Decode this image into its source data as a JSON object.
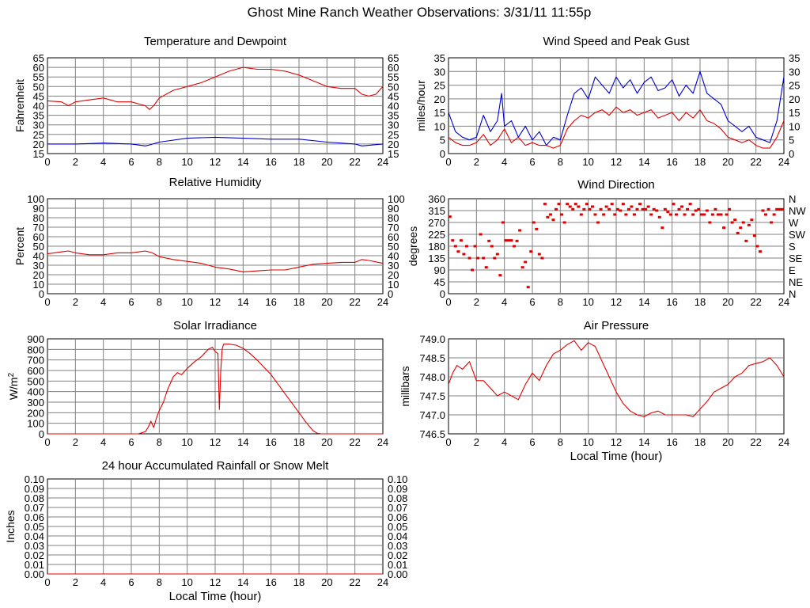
{
  "page": {
    "title": "Ghost Mine Ranch Weather Observations: 3/31/11 11:55p",
    "x_axis_label": "Local Time (hour)"
  },
  "colors": {
    "grid": "#808080",
    "red": "#e00000",
    "blue": "#0000d0",
    "axis": "#000000"
  },
  "chart_data": [
    {
      "id": "temperature",
      "type": "line",
      "title": "Temperature and Dewpoint",
      "ylabel": "Fahrenheit",
      "xlim": [
        0,
        24
      ],
      "ylim": [
        15,
        65
      ],
      "x_ticks": [
        0,
        2,
        4,
        6,
        8,
        10,
        12,
        14,
        16,
        18,
        20,
        22,
        24
      ],
      "y_ticks": [
        "15",
        "20",
        "25",
        "30",
        "35",
        "40",
        "45",
        "50",
        "55",
        "60",
        "65"
      ],
      "right_ticks": [
        "15",
        "20",
        "25",
        "30",
        "35",
        "40",
        "45",
        "50",
        "55",
        "60",
        "65"
      ],
      "series": [
        {
          "name": "Temperature",
          "color": "red",
          "x": [
            0,
            1,
            1.5,
            2,
            3,
            4,
            5,
            6,
            6.5,
            7,
            7.3,
            7.6,
            8,
            9,
            10,
            11,
            12,
            13,
            14,
            15,
            16,
            17,
            18,
            19,
            20,
            21,
            22,
            22.5,
            23,
            23.5,
            24
          ],
          "y": [
            42.5,
            42,
            40,
            42,
            43,
            44,
            42,
            42,
            41,
            40,
            38,
            40,
            44,
            48,
            50,
            52,
            55,
            58,
            60,
            59,
            59,
            58,
            56,
            53,
            50,
            49,
            49,
            46,
            45,
            46,
            50
          ]
        },
        {
          "name": "Dewpoint",
          "color": "blue",
          "x": [
            0,
            2,
            4,
            6,
            7,
            7.3,
            8,
            10,
            12,
            14,
            16,
            18,
            20,
            22,
            22.5,
            24
          ],
          "y": [
            20,
            20,
            20.5,
            20,
            19,
            19.5,
            21,
            23,
            23.5,
            23,
            22.5,
            22.5,
            21,
            20,
            19,
            20
          ]
        }
      ]
    },
    {
      "id": "wind_speed",
      "type": "line",
      "title": "Wind Speed and Peak Gust",
      "ylabel": "miles/hour",
      "xlim": [
        0,
        24
      ],
      "ylim": [
        0,
        35
      ],
      "x_ticks": [
        0,
        2,
        4,
        6,
        8,
        10,
        12,
        14,
        16,
        18,
        20,
        22,
        24
      ],
      "y_ticks": [
        "0",
        "5",
        "10",
        "15",
        "20",
        "25",
        "30",
        "35"
      ],
      "right_ticks": [
        "0",
        "5",
        "10",
        "15",
        "20",
        "25",
        "30",
        "35"
      ],
      "series": [
        {
          "name": "Peak Gust",
          "color": "blue",
          "x": [
            0,
            0.5,
            1,
            1.5,
            2,
            2.5,
            3,
            3.5,
            3.8,
            4,
            4.5,
            5,
            5.5,
            6,
            6.5,
            7,
            7.5,
            8,
            8.5,
            9,
            9.5,
            10,
            10.5,
            11,
            11.5,
            12,
            12.5,
            13,
            13.5,
            14,
            14.5,
            15,
            15.5,
            16,
            16.5,
            17,
            17.5,
            18,
            18.5,
            19,
            19.5,
            20,
            20.5,
            21,
            21.5,
            22,
            22.5,
            23,
            23.5,
            24
          ],
          "y": [
            15,
            8,
            6,
            5,
            6,
            14,
            8,
            12,
            22,
            10,
            12,
            6,
            10,
            5,
            8,
            3,
            6,
            5,
            14,
            22,
            24,
            20,
            28,
            25,
            22,
            28,
            24,
            27,
            22,
            26,
            28,
            23,
            24,
            27,
            21,
            25,
            22,
            30,
            22,
            20,
            18,
            12,
            10,
            8,
            10,
            6,
            5,
            4,
            12,
            28
          ]
        },
        {
          "name": "Wind Speed",
          "color": "red",
          "x": [
            0,
            0.5,
            1,
            1.5,
            2,
            2.5,
            3,
            3.5,
            4,
            4.5,
            5,
            5.5,
            6,
            6.5,
            7,
            7.5,
            8,
            8.5,
            9,
            9.5,
            10,
            10.5,
            11,
            11.5,
            12,
            12.5,
            13,
            13.5,
            14,
            14.5,
            15,
            15.5,
            16,
            16.5,
            17,
            17.5,
            18,
            18.5,
            19,
            19.5,
            20,
            20.5,
            21,
            21.5,
            22,
            22.5,
            23,
            23.5,
            24
          ],
          "y": [
            6,
            4,
            3,
            3,
            4,
            7,
            3,
            5,
            9,
            4,
            6,
            3,
            4,
            3,
            3,
            2,
            3,
            9,
            12,
            14,
            13,
            15,
            16,
            14,
            17,
            15,
            16,
            14,
            15,
            16,
            13,
            14,
            15,
            12,
            15,
            13,
            16,
            12,
            11,
            9,
            6,
            5,
            4,
            5,
            3,
            2,
            2,
            6,
            12
          ]
        }
      ]
    },
    {
      "id": "humidity",
      "type": "line",
      "title": "Relative Humidity",
      "ylabel": "Percent",
      "xlim": [
        0,
        24
      ],
      "ylim": [
        0,
        100
      ],
      "x_ticks": [
        0,
        2,
        4,
        6,
        8,
        10,
        12,
        14,
        16,
        18,
        20,
        22,
        24
      ],
      "y_ticks": [
        "0",
        "10",
        "20",
        "30",
        "40",
        "50",
        "60",
        "70",
        "80",
        "90",
        "100"
      ],
      "right_ticks": [
        "0",
        "10",
        "20",
        "30",
        "40",
        "50",
        "60",
        "70",
        "80",
        "90",
        "100"
      ],
      "series": [
        {
          "name": "Relative Humidity",
          "color": "red",
          "x": [
            0,
            1,
            1.5,
            2,
            3,
            4,
            5,
            6,
            7,
            7.5,
            8,
            9,
            10,
            11,
            12,
            13,
            14,
            15,
            16,
            17,
            18,
            19,
            20,
            21,
            22,
            22.5,
            23,
            24
          ],
          "y": [
            42,
            44,
            45,
            43,
            41,
            41,
            43,
            43,
            45,
            43,
            39,
            36,
            34,
            32,
            28,
            26,
            23,
            24,
            25,
            25,
            28,
            31,
            32,
            33,
            33,
            36,
            35,
            32
          ]
        }
      ]
    },
    {
      "id": "wind_direction",
      "type": "scatter",
      "title": "Wind Direction",
      "ylabel": "degrees",
      "xlim": [
        0,
        24
      ],
      "ylim": [
        0,
        360
      ],
      "x_ticks": [
        0,
        2,
        4,
        6,
        8,
        10,
        12,
        14,
        16,
        18,
        20,
        22,
        24
      ],
      "y_ticks": [
        "0",
        "45",
        "90",
        "135",
        "180",
        "225",
        "270",
        "315",
        "360"
      ],
      "right_ticks": [
        "N",
        "NE",
        "E",
        "SE",
        "S",
        "SW",
        "W",
        "NW",
        "N"
      ],
      "series": [
        {
          "name": "Direction",
          "color": "red",
          "x": [
            0.1,
            0.3,
            0.5,
            0.7,
            0.9,
            1.1,
            1.3,
            1.5,
            1.7,
            1.9,
            2.1,
            2.3,
            2.5,
            2.7,
            2.9,
            3.1,
            3.3,
            3.5,
            3.7,
            3.9,
            4.1,
            4.3,
            4.5,
            4.7,
            4.9,
            5.1,
            5.3,
            5.5,
            5.7,
            5.9,
            6.1,
            6.3,
            6.5,
            6.7,
            6.9,
            7.1,
            7.3,
            7.5,
            7.7,
            7.9,
            8.1,
            8.3,
            8.5,
            8.7,
            8.9,
            9.1,
            9.3,
            9.5,
            9.7,
            9.9,
            10.1,
            10.3,
            10.5,
            10.7,
            10.9,
            11.1,
            11.3,
            11.5,
            11.7,
            11.9,
            12.1,
            12.3,
            12.5,
            12.7,
            12.9,
            13.1,
            13.3,
            13.5,
            13.7,
            13.9,
            14.1,
            14.3,
            14.5,
            14.7,
            14.9,
            15.1,
            15.3,
            15.5,
            15.7,
            15.9,
            16.1,
            16.3,
            16.5,
            16.7,
            16.9,
            17.1,
            17.3,
            17.5,
            17.7,
            17.9,
            18.1,
            18.3,
            18.5,
            18.7,
            18.9,
            19.1,
            19.3,
            19.5,
            19.7,
            19.9,
            20.1,
            20.3,
            20.5,
            20.7,
            20.9,
            21.1,
            21.3,
            21.5,
            21.7,
            21.9,
            22.1,
            22.3,
            22.5,
            22.7,
            22.9,
            23.1,
            23.3,
            23.5,
            23.7,
            23.9
          ],
          "y": [
            292,
            202,
            180,
            160,
            202,
            150,
            180,
            135,
            90,
            180,
            135,
            225,
            135,
            100,
            200,
            180,
            135,
            150,
            70,
            270,
            202,
            202,
            202,
            180,
            200,
            240,
            100,
            120,
            25,
            160,
            270,
            245,
            150,
            135,
            340,
            290,
            300,
            280,
            320,
            340,
            300,
            270,
            340,
            330,
            320,
            340,
            330,
            300,
            320,
            340,
            320,
            330,
            300,
            270,
            320,
            300,
            330,
            320,
            340,
            300,
            320,
            315,
            340,
            300,
            320,
            330,
            300,
            320,
            340,
            320,
            320,
            330,
            300,
            320,
            315,
            290,
            250,
            320,
            310,
            300,
            340,
            300,
            320,
            330,
            300,
            320,
            340,
            300,
            315,
            320,
            300,
            300,
            315,
            270,
            300,
            320,
            300,
            300,
            250,
            300,
            320,
            270,
            280,
            230,
            250,
            270,
            200,
            260,
            280,
            220,
            180,
            160,
            315,
            300,
            320,
            270,
            300,
            320,
            320,
            320
          ]
        }
      ]
    },
    {
      "id": "solar",
      "type": "line",
      "title": "Solar Irradiance",
      "ylabel": "W/m",
      "ylabel_sup": "2",
      "xlim": [
        0,
        24
      ],
      "ylim": [
        0,
        900
      ],
      "x_ticks": [
        0,
        2,
        4,
        6,
        8,
        10,
        12,
        14,
        16,
        18,
        20,
        22,
        24
      ],
      "y_ticks": [
        "0",
        "100",
        "200",
        "300",
        "400",
        "500",
        "600",
        "700",
        "800",
        "900"
      ],
      "right_ticks": [],
      "series": [
        {
          "name": "Solar Irradiance",
          "color": "red",
          "x": [
            0,
            6,
            6.5,
            7,
            7.2,
            7.4,
            7.6,
            7.8,
            8,
            8.3,
            8.6,
            9,
            9.3,
            9.6,
            10,
            10.5,
            11,
            11.5,
            11.8,
            12,
            12.2,
            12.3,
            12.4,
            12.5,
            12.6,
            13,
            13.5,
            14,
            14.5,
            15,
            15.5,
            16,
            16.5,
            17,
            17.5,
            18,
            18.5,
            19,
            19.3,
            19.6,
            20,
            24
          ],
          "y": [
            0,
            0,
            0,
            20,
            60,
            120,
            60,
            150,
            220,
            300,
            420,
            540,
            580,
            560,
            620,
            680,
            730,
            800,
            820,
            780,
            760,
            230,
            600,
            800,
            850,
            850,
            840,
            810,
            760,
            700,
            630,
            560,
            470,
            380,
            290,
            200,
            110,
            30,
            5,
            0,
            0,
            0
          ]
        }
      ]
    },
    {
      "id": "pressure",
      "type": "line",
      "title": "Air Pressure",
      "ylabel": "millibars",
      "xlim": [
        0,
        24
      ],
      "ylim": [
        746.5,
        749.0
      ],
      "x_ticks": [
        0,
        2,
        4,
        6,
        8,
        10,
        12,
        14,
        16,
        18,
        20,
        22,
        24
      ],
      "y_ticks": [
        "746.5",
        "747.0",
        "747.5",
        "748.0",
        "748.5",
        "749.0"
      ],
      "right_ticks": [],
      "series": [
        {
          "name": "Air Pressure",
          "color": "red",
          "x": [
            0,
            0.3,
            0.6,
            1,
            1.5,
            2,
            2.5,
            3,
            3.5,
            4,
            4.5,
            5,
            5.5,
            6,
            6.5,
            7,
            7.5,
            8,
            8.5,
            9,
            9.5,
            10,
            10.5,
            11,
            11.5,
            12,
            12.5,
            13,
            13.5,
            14,
            14.5,
            15,
            15.5,
            16,
            16.5,
            17,
            17.5,
            18,
            18.5,
            19,
            19.5,
            20,
            20.5,
            21,
            21.5,
            22,
            22.5,
            23,
            23.5,
            24
          ],
          "y": [
            747.8,
            748.1,
            748.3,
            748.2,
            748.4,
            747.9,
            747.9,
            747.7,
            747.5,
            747.6,
            747.5,
            747.4,
            747.8,
            748.1,
            747.9,
            748.3,
            748.6,
            748.7,
            748.85,
            748.95,
            748.7,
            748.9,
            748.8,
            748.4,
            748.0,
            747.6,
            747.3,
            747.1,
            747.0,
            746.95,
            747.05,
            747.1,
            747.0,
            747.0,
            747.0,
            747.0,
            746.95,
            747.15,
            747.35,
            747.6,
            747.7,
            747.8,
            748.0,
            748.1,
            748.3,
            748.35,
            748.4,
            748.5,
            748.3,
            748.0
          ]
        }
      ]
    },
    {
      "id": "rain",
      "type": "line",
      "title": "24 hour Accumulated Rainfall or Snow Melt",
      "ylabel": "Inches",
      "xlim": [
        0,
        24
      ],
      "ylim": [
        0,
        0.1
      ],
      "x_ticks": [
        0,
        2,
        4,
        6,
        8,
        10,
        12,
        14,
        16,
        18,
        20,
        22,
        24
      ],
      "y_ticks": [
        "0.00",
        "0.01",
        "0.02",
        "0.03",
        "0.04",
        "0.05",
        "0.06",
        "0.07",
        "0.08",
        "0.09",
        "0.10"
      ],
      "right_ticks": [
        "0.00",
        "0.01",
        "0.02",
        "0.03",
        "0.04",
        "0.05",
        "0.06",
        "0.07",
        "0.08",
        "0.09",
        "0.10"
      ],
      "series": [
        {
          "name": "Rainfall",
          "color": "red",
          "x": [
            0,
            24
          ],
          "y": [
            0,
            0
          ]
        }
      ]
    }
  ]
}
